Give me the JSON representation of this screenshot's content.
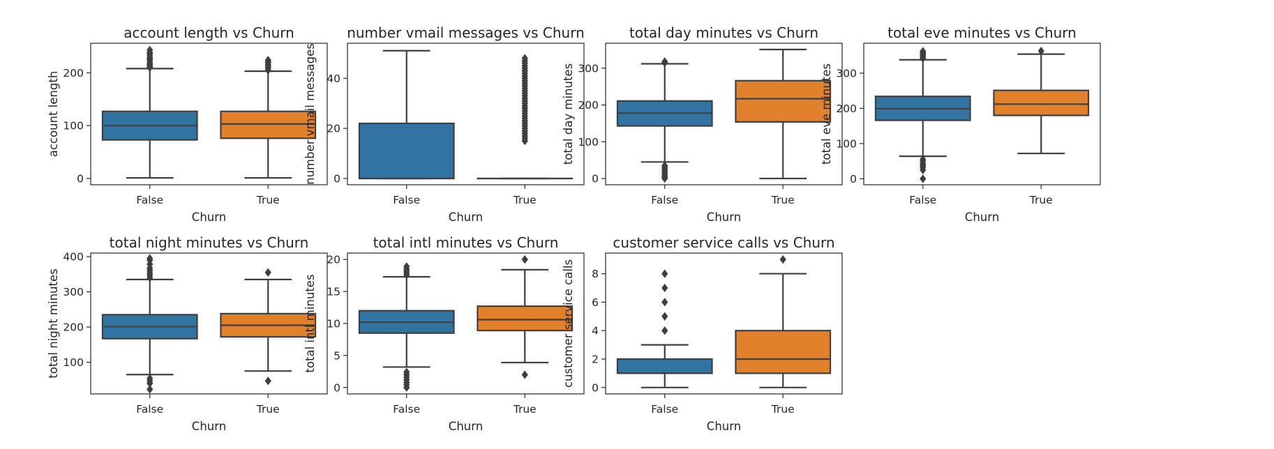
{
  "colors": {
    "false_box": "#3274A1",
    "true_box": "#E1812C",
    "line": "#3f3f3f",
    "frame": "#262626"
  },
  "chart_data": [
    {
      "type": "boxplot",
      "title": "account length vs Churn",
      "xlabel": "Churn",
      "ylabel": "account length",
      "categories": [
        "False",
        "True"
      ],
      "ylim": [
        -12,
        256
      ],
      "yticks": [
        0,
        100,
        200
      ],
      "boxes": [
        {
          "q1": 73,
          "median": 100,
          "q3": 127,
          "whisker_low": 1,
          "whisker_high": 208,
          "outliers": [
            210,
            212,
            215,
            217,
            220,
            224,
            226,
            228,
            232,
            236,
            238,
            243
          ]
        },
        {
          "q1": 76,
          "median": 103,
          "q3": 127,
          "whisker_low": 1,
          "whisker_high": 203,
          "outliers": [
            205,
            209,
            212,
            215,
            219,
            221,
            224
          ]
        }
      ]
    },
    {
      "type": "boxplot",
      "title": "number vmail messages vs Churn",
      "xlabel": "Churn",
      "ylabel": "number vmail messages",
      "categories": [
        "False",
        "True"
      ],
      "ylim": [
        -2.5,
        54
      ],
      "yticks": [
        0,
        20,
        40
      ],
      "boxes": [
        {
          "q1": 0,
          "median": 0,
          "q3": 22,
          "whisker_low": 0,
          "whisker_high": 51,
          "outliers": []
        },
        {
          "q1": 0,
          "median": 0,
          "q3": 0,
          "whisker_low": 0,
          "whisker_high": 0,
          "outliers": [
            15,
            16,
            17,
            18,
            19,
            20,
            21,
            22,
            23,
            24,
            25,
            26,
            27,
            28,
            29,
            30,
            31,
            32,
            33,
            34,
            35,
            36,
            37,
            38,
            39,
            40,
            41,
            42,
            43,
            44,
            45,
            46,
            47,
            48
          ]
        }
      ]
    },
    {
      "type": "boxplot",
      "title": "total day minutes vs Churn",
      "xlabel": "Churn",
      "ylabel": "total day minutes",
      "categories": [
        "False",
        "True"
      ],
      "ylim": [
        -17,
        368
      ],
      "yticks": [
        0,
        100,
        200,
        300
      ],
      "boxes": [
        {
          "q1": 143,
          "median": 178,
          "q3": 211,
          "whisker_low": 45,
          "whisker_high": 312,
          "outliers": [
            0,
            3,
            7,
            12,
            17,
            22,
            27,
            31,
            35,
            315,
            318
          ]
        },
        {
          "q1": 154,
          "median": 217,
          "q3": 266,
          "whisker_low": 0,
          "whisker_high": 351,
          "outliers": []
        }
      ]
    },
    {
      "type": "boxplot",
      "title": "total eve minutes vs Churn",
      "xlabel": "Churn",
      "ylabel": "total eve minutes",
      "categories": [
        "False",
        "True"
      ],
      "ylim": [
        -17,
        385
      ],
      "yticks": [
        0,
        100,
        200,
        300
      ],
      "boxes": [
        {
          "q1": 166,
          "median": 199,
          "q3": 234,
          "whisker_low": 64,
          "whisker_high": 338,
          "outliers": [
            0,
            25,
            32,
            38,
            43,
            50,
            55,
            342,
            346,
            350,
            354,
            358,
            362
          ]
        },
        {
          "q1": 180,
          "median": 212,
          "q3": 251,
          "whisker_low": 72,
          "whisker_high": 354,
          "outliers": [
            363
          ]
        }
      ]
    },
    {
      "type": "boxplot",
      "title": "total night minutes vs Churn",
      "xlabel": "Churn",
      "ylabel": "total night minutes",
      "categories": [
        "False",
        "True"
      ],
      "ylim": [
        10,
        410
      ],
      "yticks": [
        100,
        200,
        300,
        400
      ],
      "boxes": [
        {
          "q1": 167,
          "median": 201,
          "q3": 235,
          "whisker_low": 65,
          "whisker_high": 335,
          "outliers": [
            23,
            40,
            47,
            54,
            340,
            347,
            353,
            360,
            367,
            378,
            390,
            395
          ]
        },
        {
          "q1": 172,
          "median": 205,
          "q3": 238,
          "whisker_low": 75,
          "whisker_high": 335,
          "outliers": [
            47,
            355
          ]
        }
      ]
    },
    {
      "type": "boxplot",
      "title": "total intl minutes vs Churn",
      "xlabel": "Churn",
      "ylabel": "total intl minutes",
      "categories": [
        "False",
        "True"
      ],
      "ylim": [
        -1,
        21
      ],
      "yticks": [
        0,
        5,
        10,
        15,
        20
      ],
      "boxes": [
        {
          "q1": 8.5,
          "median": 10.2,
          "q3": 12.0,
          "whisker_low": 3.2,
          "whisker_high": 17.3,
          "outliers": [
            0,
            0.4,
            0.8,
            1.2,
            1.6,
            2.0,
            2.4,
            17.6,
            17.9,
            18.2,
            18.5,
            18.9
          ]
        },
        {
          "q1": 8.9,
          "median": 10.6,
          "q3": 12.7,
          "whisker_low": 3.9,
          "whisker_high": 18.4,
          "outliers": [
            2.0,
            20.0
          ]
        }
      ]
    },
    {
      "type": "boxplot",
      "title": "customer service calls vs Churn",
      "xlabel": "Churn",
      "ylabel": "customer service calls",
      "categories": [
        "False",
        "True"
      ],
      "ylim": [
        -0.45,
        9.45
      ],
      "yticks": [
        0,
        2,
        4,
        6,
        8
      ],
      "boxes": [
        {
          "q1": 1,
          "median": 1,
          "q3": 2,
          "whisker_low": 0,
          "whisker_high": 3,
          "outliers": [
            4,
            5,
            6,
            7,
            8
          ]
        },
        {
          "q1": 1,
          "median": 2,
          "q3": 4,
          "whisker_low": 0,
          "whisker_high": 8,
          "outliers": [
            9
          ]
        }
      ]
    }
  ]
}
